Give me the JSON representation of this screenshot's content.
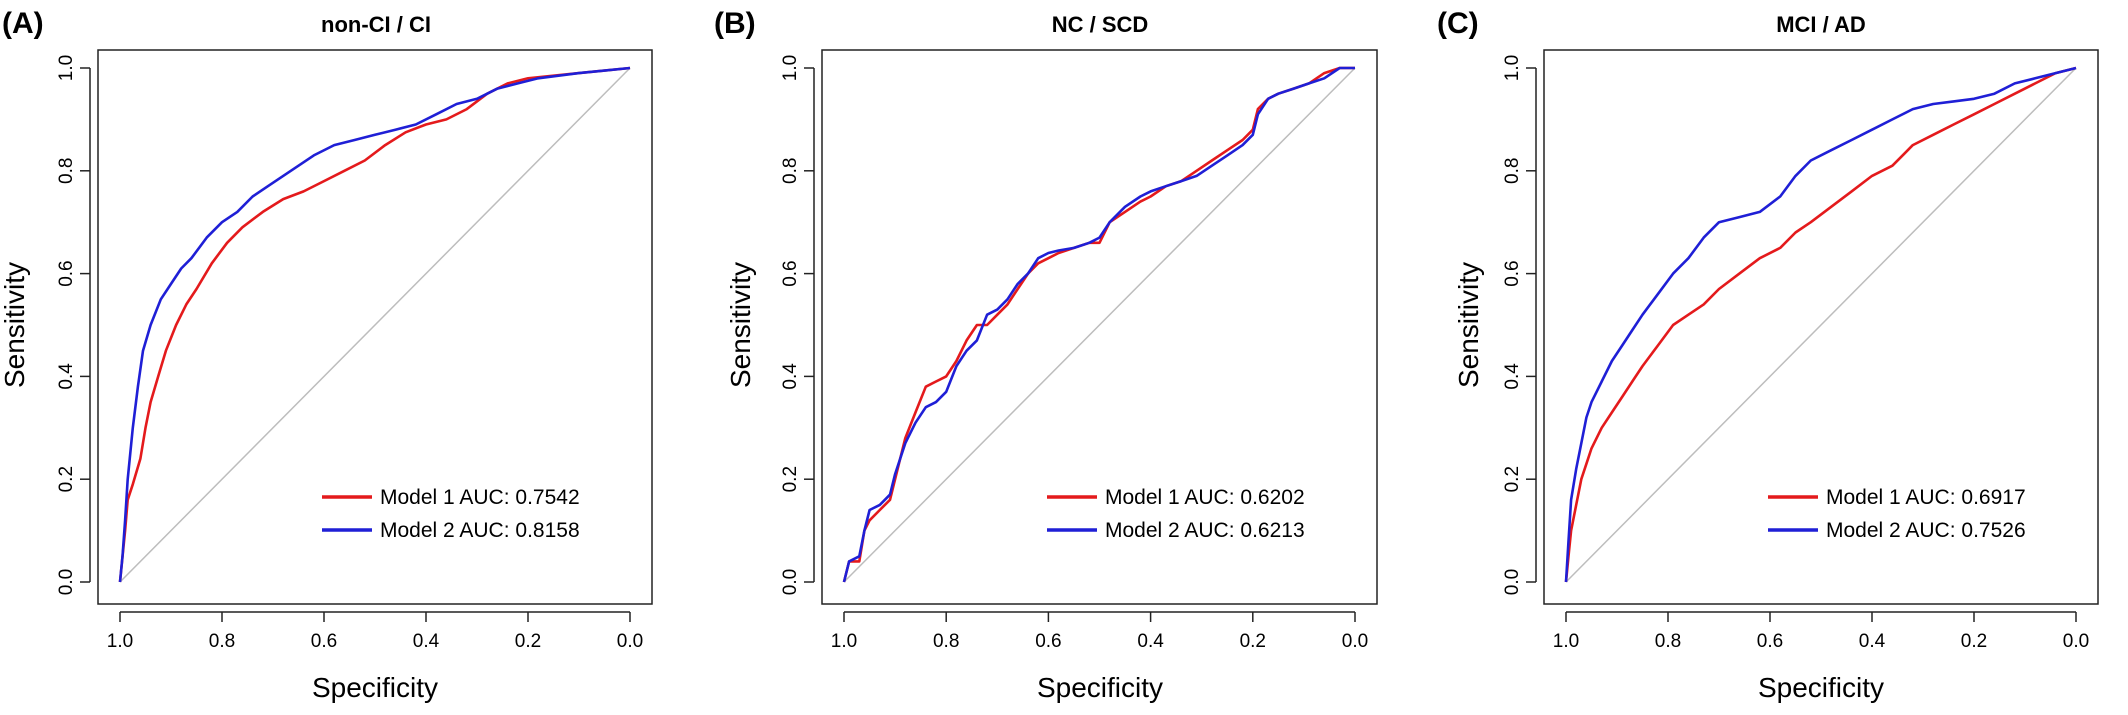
{
  "figure": {
    "panels": [
      {
        "letter": "(A)"
      },
      {
        "letter": "(B)"
      },
      {
        "letter": "(C)"
      }
    ]
  },
  "colors": {
    "model1": "#e41a1c",
    "model2": "#1f1fd6",
    "diagonal": "#bdbdbd",
    "axis": "#222222"
  },
  "chart_data": [
    {
      "type": "line",
      "title": "non-CI / CI",
      "xlabel": "Specificity",
      "ylabel": "Sensitivity",
      "xlim": [
        1.0,
        0.0
      ],
      "ylim": [
        0.0,
        1.0
      ],
      "x_reversed": true,
      "xticks": [
        "1.0",
        "0.8",
        "0.6",
        "0.4",
        "0.2",
        "0.0"
      ],
      "yticks": [
        "0.0",
        "0.2",
        "0.4",
        "0.6",
        "0.8",
        "1.0"
      ],
      "grid": false,
      "legend_position": "bottom-right",
      "reference_line": "diagonal",
      "series": [
        {
          "name": "Model 1 AUC: 0.7542",
          "color": "#e41a1c",
          "x": [
            1.0,
            0.99,
            0.985,
            0.975,
            0.96,
            0.95,
            0.94,
            0.925,
            0.91,
            0.89,
            0.87,
            0.85,
            0.82,
            0.79,
            0.76,
            0.72,
            0.68,
            0.64,
            0.6,
            0.56,
            0.52,
            0.48,
            0.44,
            0.4,
            0.36,
            0.32,
            0.28,
            0.24,
            0.2,
            0.15,
            0.1,
            0.05,
            0.0
          ],
          "y": [
            0.0,
            0.1,
            0.16,
            0.19,
            0.24,
            0.3,
            0.35,
            0.4,
            0.45,
            0.5,
            0.54,
            0.57,
            0.62,
            0.66,
            0.69,
            0.72,
            0.745,
            0.76,
            0.78,
            0.8,
            0.82,
            0.85,
            0.875,
            0.89,
            0.9,
            0.92,
            0.95,
            0.97,
            0.98,
            0.985,
            0.99,
            0.995,
            1.0
          ]
        },
        {
          "name": "Model 2 AUC: 0.8158",
          "color": "#1f1fd6",
          "x": [
            1.0,
            0.995,
            0.99,
            0.985,
            0.975,
            0.965,
            0.955,
            0.94,
            0.92,
            0.9,
            0.88,
            0.86,
            0.83,
            0.8,
            0.77,
            0.74,
            0.71,
            0.68,
            0.65,
            0.62,
            0.58,
            0.54,
            0.5,
            0.46,
            0.42,
            0.38,
            0.34,
            0.3,
            0.26,
            0.22,
            0.18,
            0.14,
            0.1,
            0.05,
            0.0
          ],
          "y": [
            0.0,
            0.05,
            0.12,
            0.2,
            0.3,
            0.38,
            0.45,
            0.5,
            0.55,
            0.58,
            0.61,
            0.63,
            0.67,
            0.7,
            0.72,
            0.75,
            0.77,
            0.79,
            0.81,
            0.83,
            0.85,
            0.86,
            0.87,
            0.88,
            0.89,
            0.91,
            0.93,
            0.94,
            0.96,
            0.97,
            0.98,
            0.985,
            0.99,
            0.995,
            1.0
          ]
        }
      ]
    },
    {
      "type": "line",
      "title": "NC / SCD",
      "xlabel": "Specificity",
      "ylabel": "Sensitivity",
      "xlim": [
        1.0,
        0.0
      ],
      "ylim": [
        0.0,
        1.0
      ],
      "x_reversed": true,
      "xticks": [
        "1.0",
        "0.8",
        "0.6",
        "0.4",
        "0.2",
        "0.0"
      ],
      "yticks": [
        "0.0",
        "0.2",
        "0.4",
        "0.6",
        "0.8",
        "1.0"
      ],
      "grid": false,
      "legend_position": "bottom-right",
      "reference_line": "diagonal",
      "series": [
        {
          "name": "Model 1 AUC: 0.6202",
          "color": "#e41a1c",
          "x": [
            1.0,
            0.99,
            0.97,
            0.96,
            0.95,
            0.93,
            0.91,
            0.9,
            0.88,
            0.86,
            0.84,
            0.82,
            0.8,
            0.78,
            0.76,
            0.74,
            0.72,
            0.7,
            0.68,
            0.66,
            0.64,
            0.62,
            0.6,
            0.58,
            0.55,
            0.52,
            0.5,
            0.48,
            0.45,
            0.42,
            0.4,
            0.37,
            0.34,
            0.31,
            0.28,
            0.25,
            0.22,
            0.2,
            0.19,
            0.17,
            0.15,
            0.12,
            0.09,
            0.06,
            0.03,
            0.0
          ],
          "y": [
            0.0,
            0.04,
            0.04,
            0.1,
            0.12,
            0.14,
            0.16,
            0.2,
            0.28,
            0.33,
            0.38,
            0.39,
            0.4,
            0.43,
            0.47,
            0.5,
            0.5,
            0.52,
            0.54,
            0.57,
            0.6,
            0.62,
            0.63,
            0.64,
            0.65,
            0.66,
            0.66,
            0.7,
            0.72,
            0.74,
            0.75,
            0.77,
            0.78,
            0.8,
            0.82,
            0.84,
            0.86,
            0.88,
            0.92,
            0.94,
            0.95,
            0.96,
            0.97,
            0.99,
            1.0,
            1.0
          ]
        },
        {
          "name": "Model 2 AUC: 0.6213",
          "color": "#1f1fd6",
          "x": [
            1.0,
            0.99,
            0.97,
            0.96,
            0.95,
            0.93,
            0.91,
            0.9,
            0.88,
            0.86,
            0.84,
            0.82,
            0.8,
            0.78,
            0.76,
            0.74,
            0.72,
            0.7,
            0.68,
            0.66,
            0.64,
            0.62,
            0.6,
            0.58,
            0.55,
            0.52,
            0.5,
            0.48,
            0.45,
            0.42,
            0.4,
            0.37,
            0.34,
            0.31,
            0.28,
            0.25,
            0.22,
            0.2,
            0.19,
            0.17,
            0.15,
            0.12,
            0.09,
            0.06,
            0.03,
            0.0
          ],
          "y": [
            0.0,
            0.04,
            0.05,
            0.1,
            0.14,
            0.15,
            0.17,
            0.21,
            0.27,
            0.31,
            0.34,
            0.35,
            0.37,
            0.42,
            0.45,
            0.47,
            0.52,
            0.53,
            0.55,
            0.58,
            0.6,
            0.63,
            0.64,
            0.645,
            0.65,
            0.66,
            0.67,
            0.7,
            0.73,
            0.75,
            0.76,
            0.77,
            0.78,
            0.79,
            0.81,
            0.83,
            0.85,
            0.87,
            0.91,
            0.94,
            0.95,
            0.96,
            0.97,
            0.98,
            1.0,
            1.0
          ]
        }
      ]
    },
    {
      "type": "line",
      "title": "MCI / AD",
      "xlabel": "Specificity",
      "ylabel": "Sensitivity",
      "xlim": [
        1.0,
        0.0
      ],
      "ylim": [
        0.0,
        1.0
      ],
      "x_reversed": true,
      "xticks": [
        "1.0",
        "0.8",
        "0.6",
        "0.4",
        "0.2",
        "0.0"
      ],
      "yticks": [
        "0.0",
        "0.2",
        "0.4",
        "0.6",
        "0.8",
        "1.0"
      ],
      "grid": false,
      "legend_position": "bottom-right",
      "reference_line": "diagonal",
      "series": [
        {
          "name": "Model 1 AUC: 0.6917",
          "color": "#e41a1c",
          "x": [
            1.0,
            0.995,
            0.99,
            0.98,
            0.97,
            0.96,
            0.95,
            0.93,
            0.91,
            0.89,
            0.87,
            0.85,
            0.82,
            0.79,
            0.76,
            0.73,
            0.7,
            0.66,
            0.62,
            0.58,
            0.55,
            0.52,
            0.48,
            0.44,
            0.4,
            0.36,
            0.32,
            0.28,
            0.24,
            0.2,
            0.16,
            0.12,
            0.08,
            0.04,
            0.0
          ],
          "y": [
            0.0,
            0.05,
            0.1,
            0.15,
            0.2,
            0.23,
            0.26,
            0.3,
            0.33,
            0.36,
            0.39,
            0.42,
            0.46,
            0.5,
            0.52,
            0.54,
            0.57,
            0.6,
            0.63,
            0.65,
            0.68,
            0.7,
            0.73,
            0.76,
            0.79,
            0.81,
            0.85,
            0.87,
            0.89,
            0.91,
            0.93,
            0.95,
            0.97,
            0.99,
            1.0
          ]
        },
        {
          "name": "Model 2 AUC: 0.7526",
          "color": "#1f1fd6",
          "x": [
            1.0,
            0.995,
            0.99,
            0.98,
            0.97,
            0.96,
            0.95,
            0.93,
            0.91,
            0.89,
            0.87,
            0.85,
            0.82,
            0.79,
            0.76,
            0.73,
            0.7,
            0.66,
            0.62,
            0.58,
            0.55,
            0.52,
            0.48,
            0.44,
            0.4,
            0.36,
            0.32,
            0.28,
            0.24,
            0.2,
            0.16,
            0.12,
            0.08,
            0.04,
            0.0
          ],
          "y": [
            0.0,
            0.08,
            0.16,
            0.22,
            0.27,
            0.32,
            0.35,
            0.39,
            0.43,
            0.46,
            0.49,
            0.52,
            0.56,
            0.6,
            0.63,
            0.67,
            0.7,
            0.71,
            0.72,
            0.75,
            0.79,
            0.82,
            0.84,
            0.86,
            0.88,
            0.9,
            0.92,
            0.93,
            0.935,
            0.94,
            0.95,
            0.97,
            0.98,
            0.99,
            1.0
          ]
        }
      ]
    }
  ]
}
